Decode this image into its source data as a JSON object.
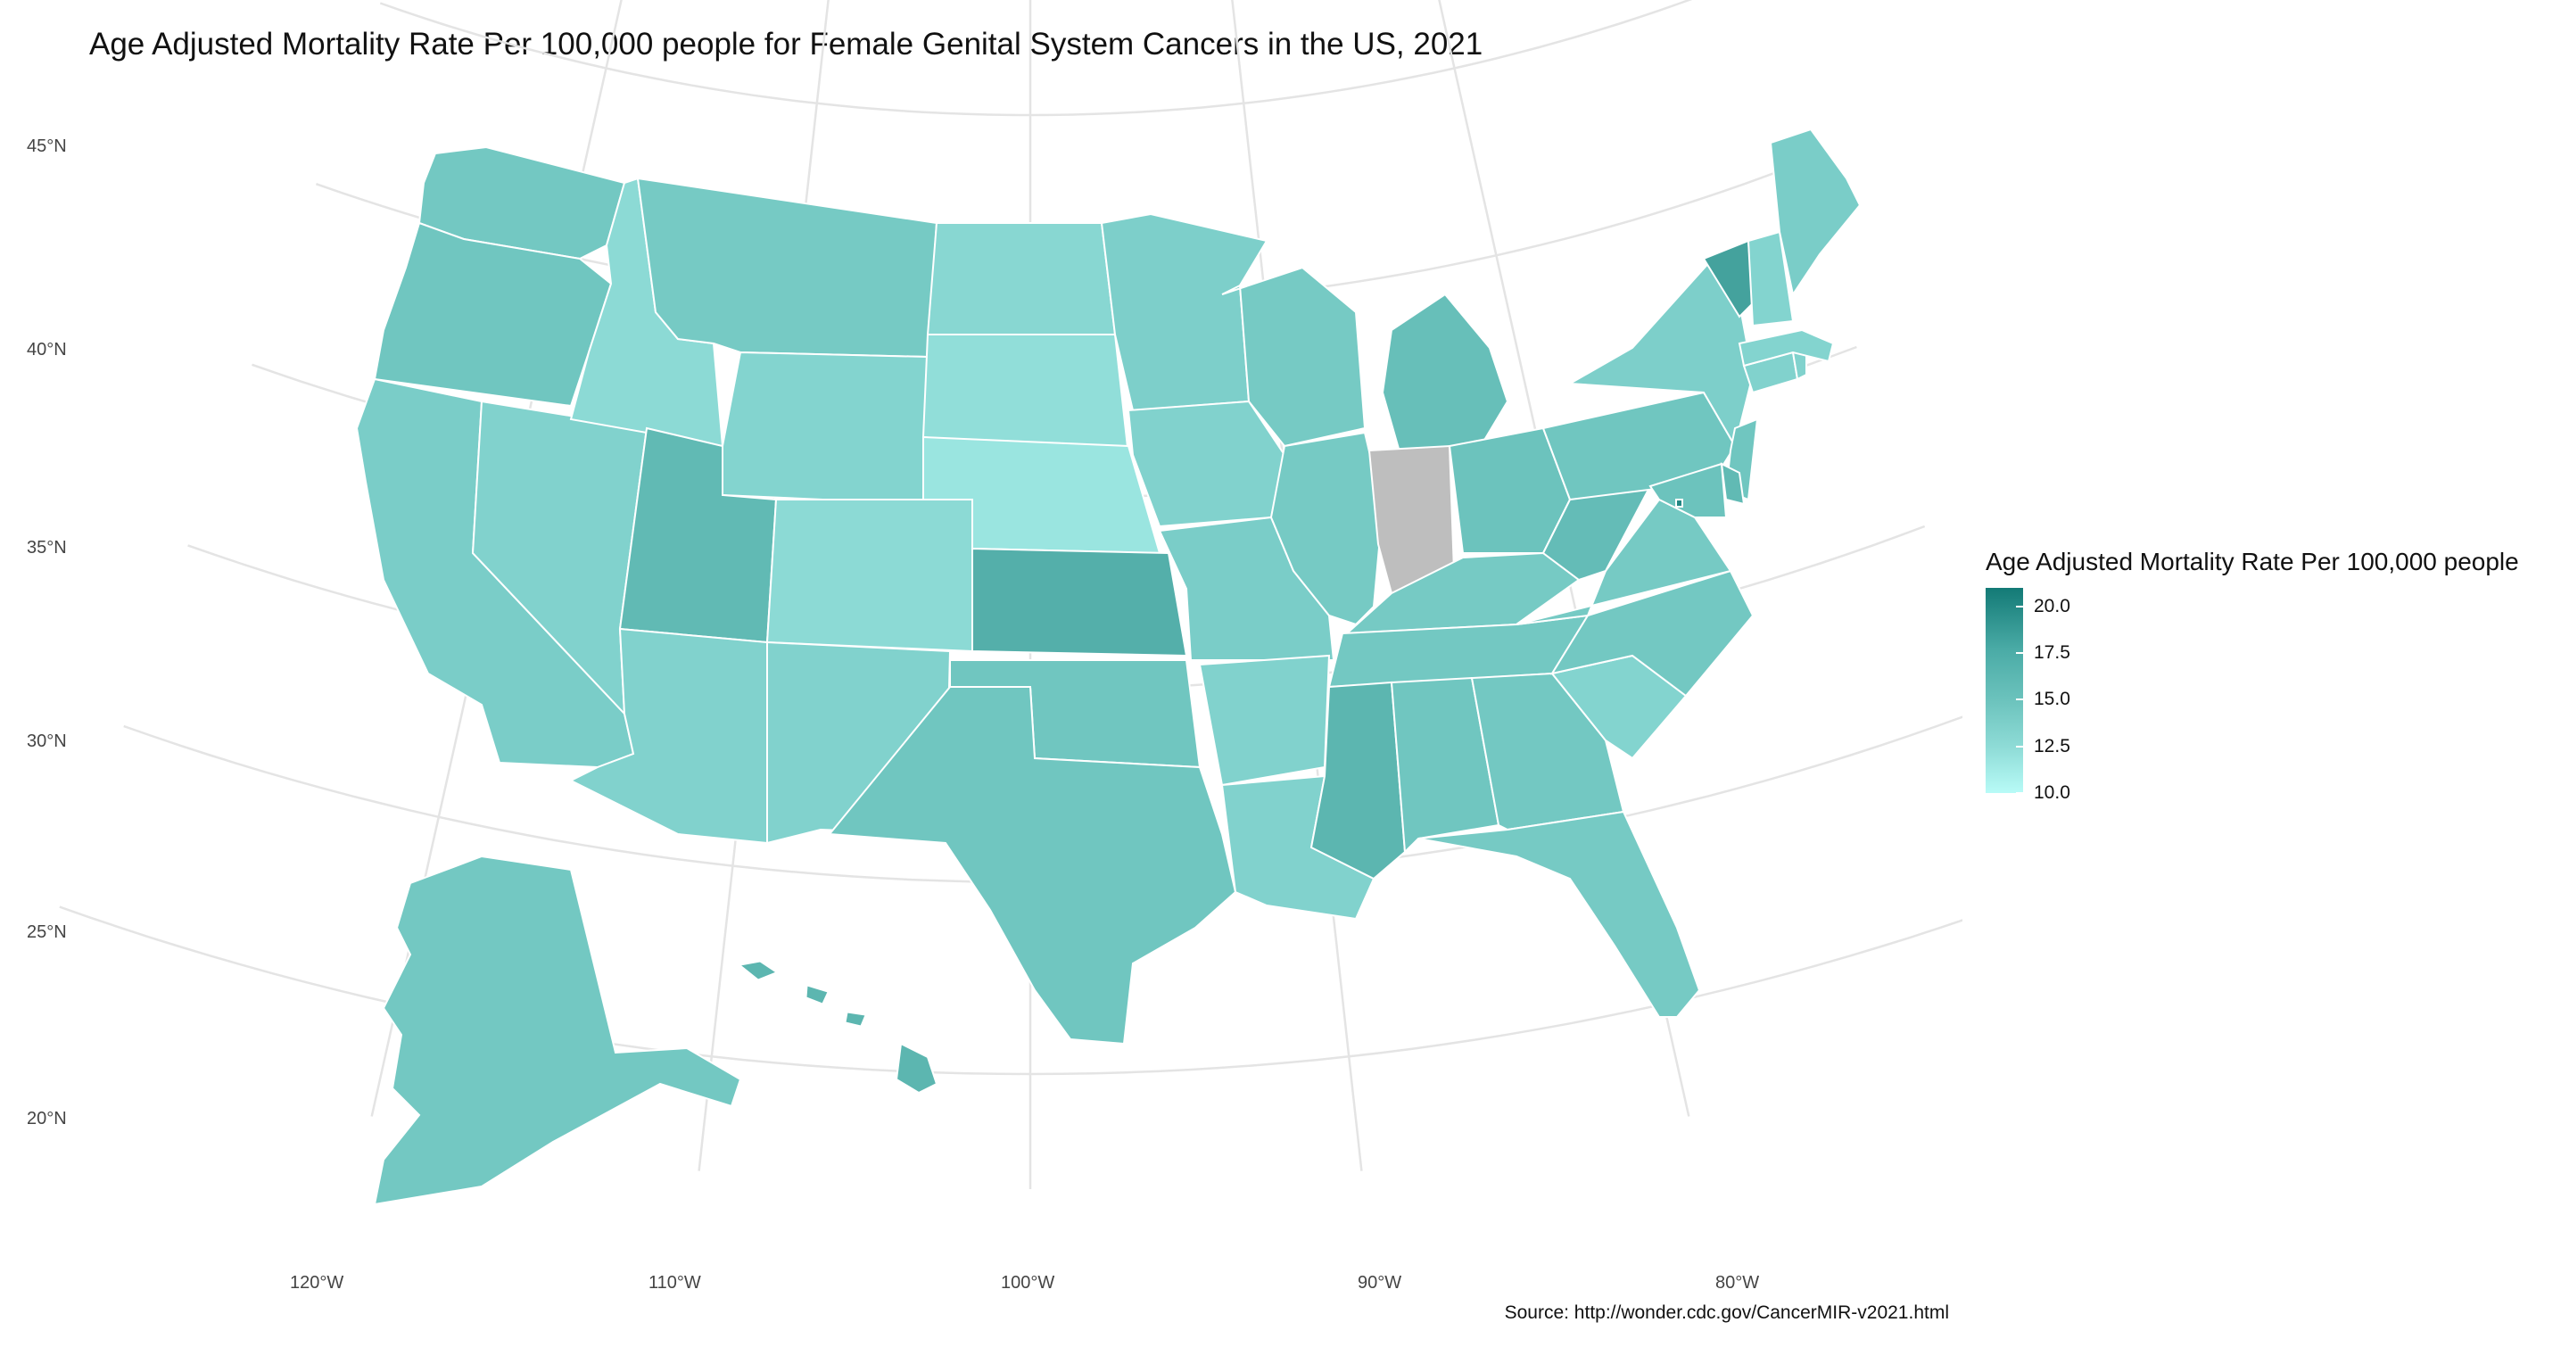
{
  "title": "Age Adjusted Mortality Rate Per 100,000 people for Female Genital System Cancers in the US, 2021",
  "source": "Source: http://wonder.cdc.gov/CancerMIR-v2021.html",
  "legend": {
    "title": "Age Adjusted Mortality Rate Per 100,000 people",
    "ticks": [
      "20.0",
      "17.5",
      "15.0",
      "12.5",
      "10.0"
    ],
    "range": [
      10.0,
      21.0
    ],
    "low_color": "#b8fbf7",
    "high_color": "#137a76",
    "na_color": "#bebebe"
  },
  "axes": {
    "lat_labels": [
      "45°N",
      "40°N",
      "35°N",
      "30°N",
      "25°N",
      "20°N"
    ],
    "lon_labels": [
      "120°W",
      "110°W",
      "100°W",
      "90°W",
      "80°W"
    ]
  },
  "chart_data": {
    "type": "choropleth",
    "title": "Age Adjusted Mortality Rate Per 100,000 people for Female Genital System Cancers in the US, 2021",
    "value_label": "Age Adjusted Mortality Rate Per 100,000 people",
    "scale": [
      10.0,
      21.0
    ],
    "grid": true,
    "legend_placement": "right",
    "regions": [
      {
        "name": "Washington",
        "value": 15.0
      },
      {
        "name": "Oregon",
        "value": 15.2
      },
      {
        "name": "California",
        "value": 14.5
      },
      {
        "name": "Nevada",
        "value": 14.0
      },
      {
        "name": "Idaho",
        "value": 13.2
      },
      {
        "name": "Montana",
        "value": 14.8
      },
      {
        "name": "Wyoming",
        "value": 13.8
      },
      {
        "name": "Utah",
        "value": 16.2
      },
      {
        "name": "Arizona",
        "value": 14.0
      },
      {
        "name": "Colorado",
        "value": 13.2
      },
      {
        "name": "New Mexico",
        "value": 14.0
      },
      {
        "name": "North Dakota",
        "value": 13.5
      },
      {
        "name": "South Dakota",
        "value": 12.8
      },
      {
        "name": "Nebraska",
        "value": 12.2
      },
      {
        "name": "Kansas",
        "value": 17.0
      },
      {
        "name": "Oklahoma",
        "value": 15.2
      },
      {
        "name": "Texas",
        "value": 15.2
      },
      {
        "name": "Minnesota",
        "value": 14.3
      },
      {
        "name": "Iowa",
        "value": 14.0
      },
      {
        "name": "Missouri",
        "value": 14.5
      },
      {
        "name": "Arkansas",
        "value": 14.0
      },
      {
        "name": "Louisiana",
        "value": 14.0
      },
      {
        "name": "Wisconsin",
        "value": 14.8
      },
      {
        "name": "Illinois",
        "value": 14.8
      },
      {
        "name": "Michigan",
        "value": 15.8
      },
      {
        "name": "Indiana",
        "value": null
      },
      {
        "name": "Ohio",
        "value": 15.5
      },
      {
        "name": "Kentucky",
        "value": 14.8
      },
      {
        "name": "Tennessee",
        "value": 15.0
      },
      {
        "name": "Mississippi",
        "value": 16.5
      },
      {
        "name": "Alabama",
        "value": 15.2
      },
      {
        "name": "Georgia",
        "value": 15.0
      },
      {
        "name": "Florida",
        "value": 14.8
      },
      {
        "name": "South Carolina",
        "value": 13.8
      },
      {
        "name": "North Carolina",
        "value": 15.0
      },
      {
        "name": "Virginia",
        "value": 14.8
      },
      {
        "name": "West Virginia",
        "value": 16.0
      },
      {
        "name": "Pennsylvania",
        "value": 15.2
      },
      {
        "name": "New York",
        "value": 14.3
      },
      {
        "name": "New Jersey",
        "value": 15.2
      },
      {
        "name": "Delaware",
        "value": 16.2
      },
      {
        "name": "Maryland",
        "value": 15.5
      },
      {
        "name": "District of Columbia",
        "value": 20.0
      },
      {
        "name": "Connecticut",
        "value": 14.0
      },
      {
        "name": "Rhode Island",
        "value": 14.0
      },
      {
        "name": "Massachusetts",
        "value": 13.8
      },
      {
        "name": "Vermont",
        "value": 18.0
      },
      {
        "name": "New Hampshire",
        "value": 13.8
      },
      {
        "name": "Maine",
        "value": 14.5
      },
      {
        "name": "Alaska",
        "value": 15.0
      },
      {
        "name": "Hawaii",
        "value": 16.5
      }
    ]
  }
}
